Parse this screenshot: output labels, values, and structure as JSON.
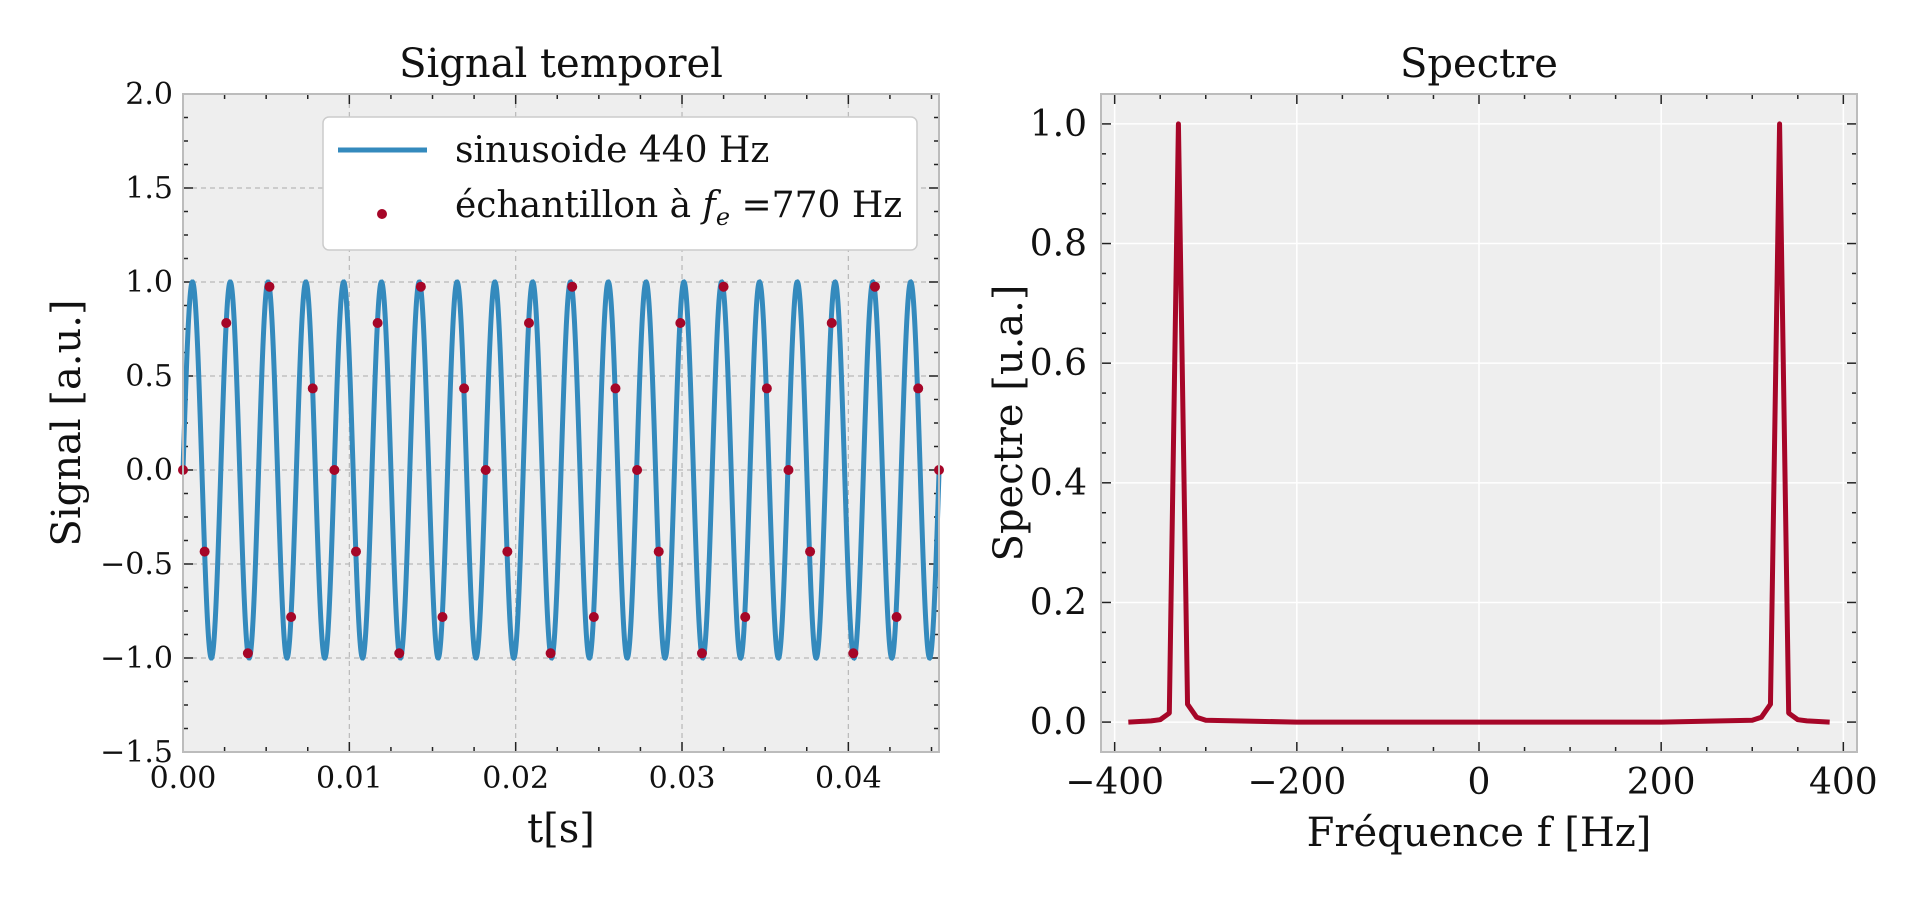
{
  "colors": {
    "background": "#ffffff",
    "plot_bg": "#eeeeee",
    "grid_left": "#b8b8b8",
    "grid_right": "#ffffff",
    "sine": "#348abd",
    "samples": "#a60628",
    "spectrum": "#a60628",
    "frame": "#bcbcbc"
  },
  "chart_data": [
    {
      "type": "line",
      "title": "Signal temporel",
      "xlabel": "t[s]",
      "ylabel": "Signal [a.u.]",
      "xlim": [
        0,
        0.04545
      ],
      "ylim": [
        -1.5,
        2.0
      ],
      "xticks": [
        0,
        0.01,
        0.02,
        0.03,
        0.04
      ],
      "xtick_labels": [
        "0.00",
        "0.01",
        "0.02",
        "0.03",
        "0.04"
      ],
      "yticks": [
        -1.5,
        -1.0,
        -0.5,
        0.0,
        0.5,
        1.0,
        1.5,
        2.0
      ],
      "ytick_labels": [
        "−1.5",
        "−1.0",
        "−0.5",
        "0.0",
        "0.5",
        "1.0",
        "1.5",
        "2.0"
      ],
      "grid": true,
      "grid_style": "dashed",
      "legend_position": "top-right",
      "legend": {
        "line_label": "sinusoide 440 Hz",
        "points_label_prefix": "échantillon à ",
        "points_label_symbol": "f",
        "points_label_subscript": "e",
        "points_label_suffix": " =770 Hz"
      },
      "series": [
        {
          "name": "sinusoide 440 Hz",
          "kind": "line",
          "function": "sin",
          "amplitude": 1.0,
          "frequency_hz": 440,
          "x_range": [
            0,
            0.04545
          ]
        },
        {
          "name": "échantillon à fe =770 Hz",
          "kind": "scatter",
          "x": [
            0.0,
            0.0013,
            0.0026,
            0.0039,
            0.0052,
            0.0065,
            0.0078,
            0.0091,
            0.0104,
            0.0117,
            0.013,
            0.0143,
            0.0156,
            0.0169,
            0.0182,
            0.0195,
            0.0208,
            0.0221,
            0.0234,
            0.0247,
            0.026,
            0.0273,
            0.0286,
            0.0299,
            0.0312,
            0.0325,
            0.0338,
            0.0351,
            0.0364,
            0.0377,
            0.039,
            0.0403,
            0.0416,
            0.0429,
            0.0442,
            0.04545
          ],
          "y": [
            0.0,
            -0.434,
            0.782,
            -0.975,
            0.975,
            -0.782,
            0.434,
            0.0,
            -0.434,
            0.782,
            -0.975,
            0.975,
            -0.782,
            0.434,
            0.0,
            -0.434,
            0.782,
            -0.975,
            0.975,
            -0.782,
            0.434,
            0.0,
            -0.434,
            0.782,
            -0.975,
            0.975,
            -0.782,
            0.434,
            0.0,
            -0.434,
            0.782,
            -0.975,
            0.975,
            -0.782,
            0.434,
            0.0
          ]
        }
      ]
    },
    {
      "type": "line",
      "title": "Spectre",
      "xlabel": "Fréquence f [Hz]",
      "ylabel": "Spectre [u.a.]",
      "xlim": [
        -415,
        415
      ],
      "ylim": [
        -0.05,
        1.05
      ],
      "xticks": [
        -400,
        -200,
        0,
        200,
        400
      ],
      "xtick_labels": [
        "−400",
        "−200",
        "0",
        "200",
        "400"
      ],
      "yticks": [
        0.0,
        0.2,
        0.4,
        0.6,
        0.8,
        1.0
      ],
      "ytick_labels": [
        "0.0",
        "0.2",
        "0.4",
        "0.6",
        "0.8",
        "1.0"
      ],
      "grid": true,
      "grid_style": "solid",
      "series": [
        {
          "name": "",
          "x": [
            -385,
            -360,
            -350,
            -340,
            -330,
            -320,
            -310,
            -300,
            -200,
            0,
            200,
            300,
            310,
            320,
            330,
            340,
            350,
            360,
            385
          ],
          "y": [
            0.0,
            0.002,
            0.004,
            0.015,
            1.0,
            0.03,
            0.008,
            0.003,
            0.0,
            0.0,
            0.0,
            0.003,
            0.008,
            0.03,
            1.0,
            0.015,
            0.004,
            0.002,
            0.0
          ]
        }
      ]
    }
  ]
}
